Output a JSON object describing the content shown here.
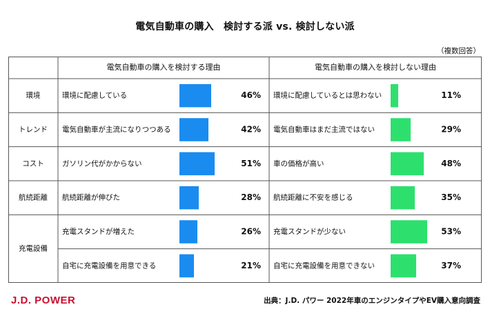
{
  "title": "電気自動車の購入　検討する派 vs. 検討しない派",
  "note": "（複数回答）",
  "chart_data": {
    "type": "bar",
    "title": "電気自動車の購入　検討する派 vs. 検討しない派",
    "headers": {
      "consider": "電気自動車の購入を検討する理由",
      "not_consider": "電気自動車の購入を検討しない理由"
    },
    "units": "%",
    "xlim": [
      0,
      100
    ],
    "colors": {
      "consider": "#1a8cf0",
      "not_consider": "#2de06e"
    },
    "rows": [
      {
        "category": "環境",
        "consider_reason": "環境に配慮している",
        "consider_value": 46,
        "not_reason": "環境に配慮しているとは思わない",
        "not_value": 11
      },
      {
        "category": "トレンド",
        "consider_reason": "電気自動車が主流になりつつある",
        "consider_value": 42,
        "not_reason": "電気自動車はまだ主流ではない",
        "not_value": 29
      },
      {
        "category": "コスト",
        "consider_reason": "ガソリン代がかからない",
        "consider_value": 51,
        "not_reason": "車の価格が高い",
        "not_value": 48
      },
      {
        "category": "航続距離",
        "consider_reason": "航続距離が伸びた",
        "consider_value": 28,
        "not_reason": "航続距離に不安を感じる",
        "not_value": 35
      },
      {
        "category": "充電設備",
        "consider_reason": "充電スタンドが増えた",
        "consider_value": 26,
        "not_reason": "充電スタンドが少ない",
        "not_value": 53
      },
      {
        "category": "充電設備",
        "consider_reason": "自宅に充電設備を用意できる",
        "consider_value": 21,
        "not_reason": "自宅に充電設備を用意できない",
        "not_value": 37
      }
    ]
  },
  "footer": {
    "logo": "J.D. POWER",
    "source": "出典：J.D. パワー 2022年車のエンジンタイプやEV購入意向調査"
  }
}
